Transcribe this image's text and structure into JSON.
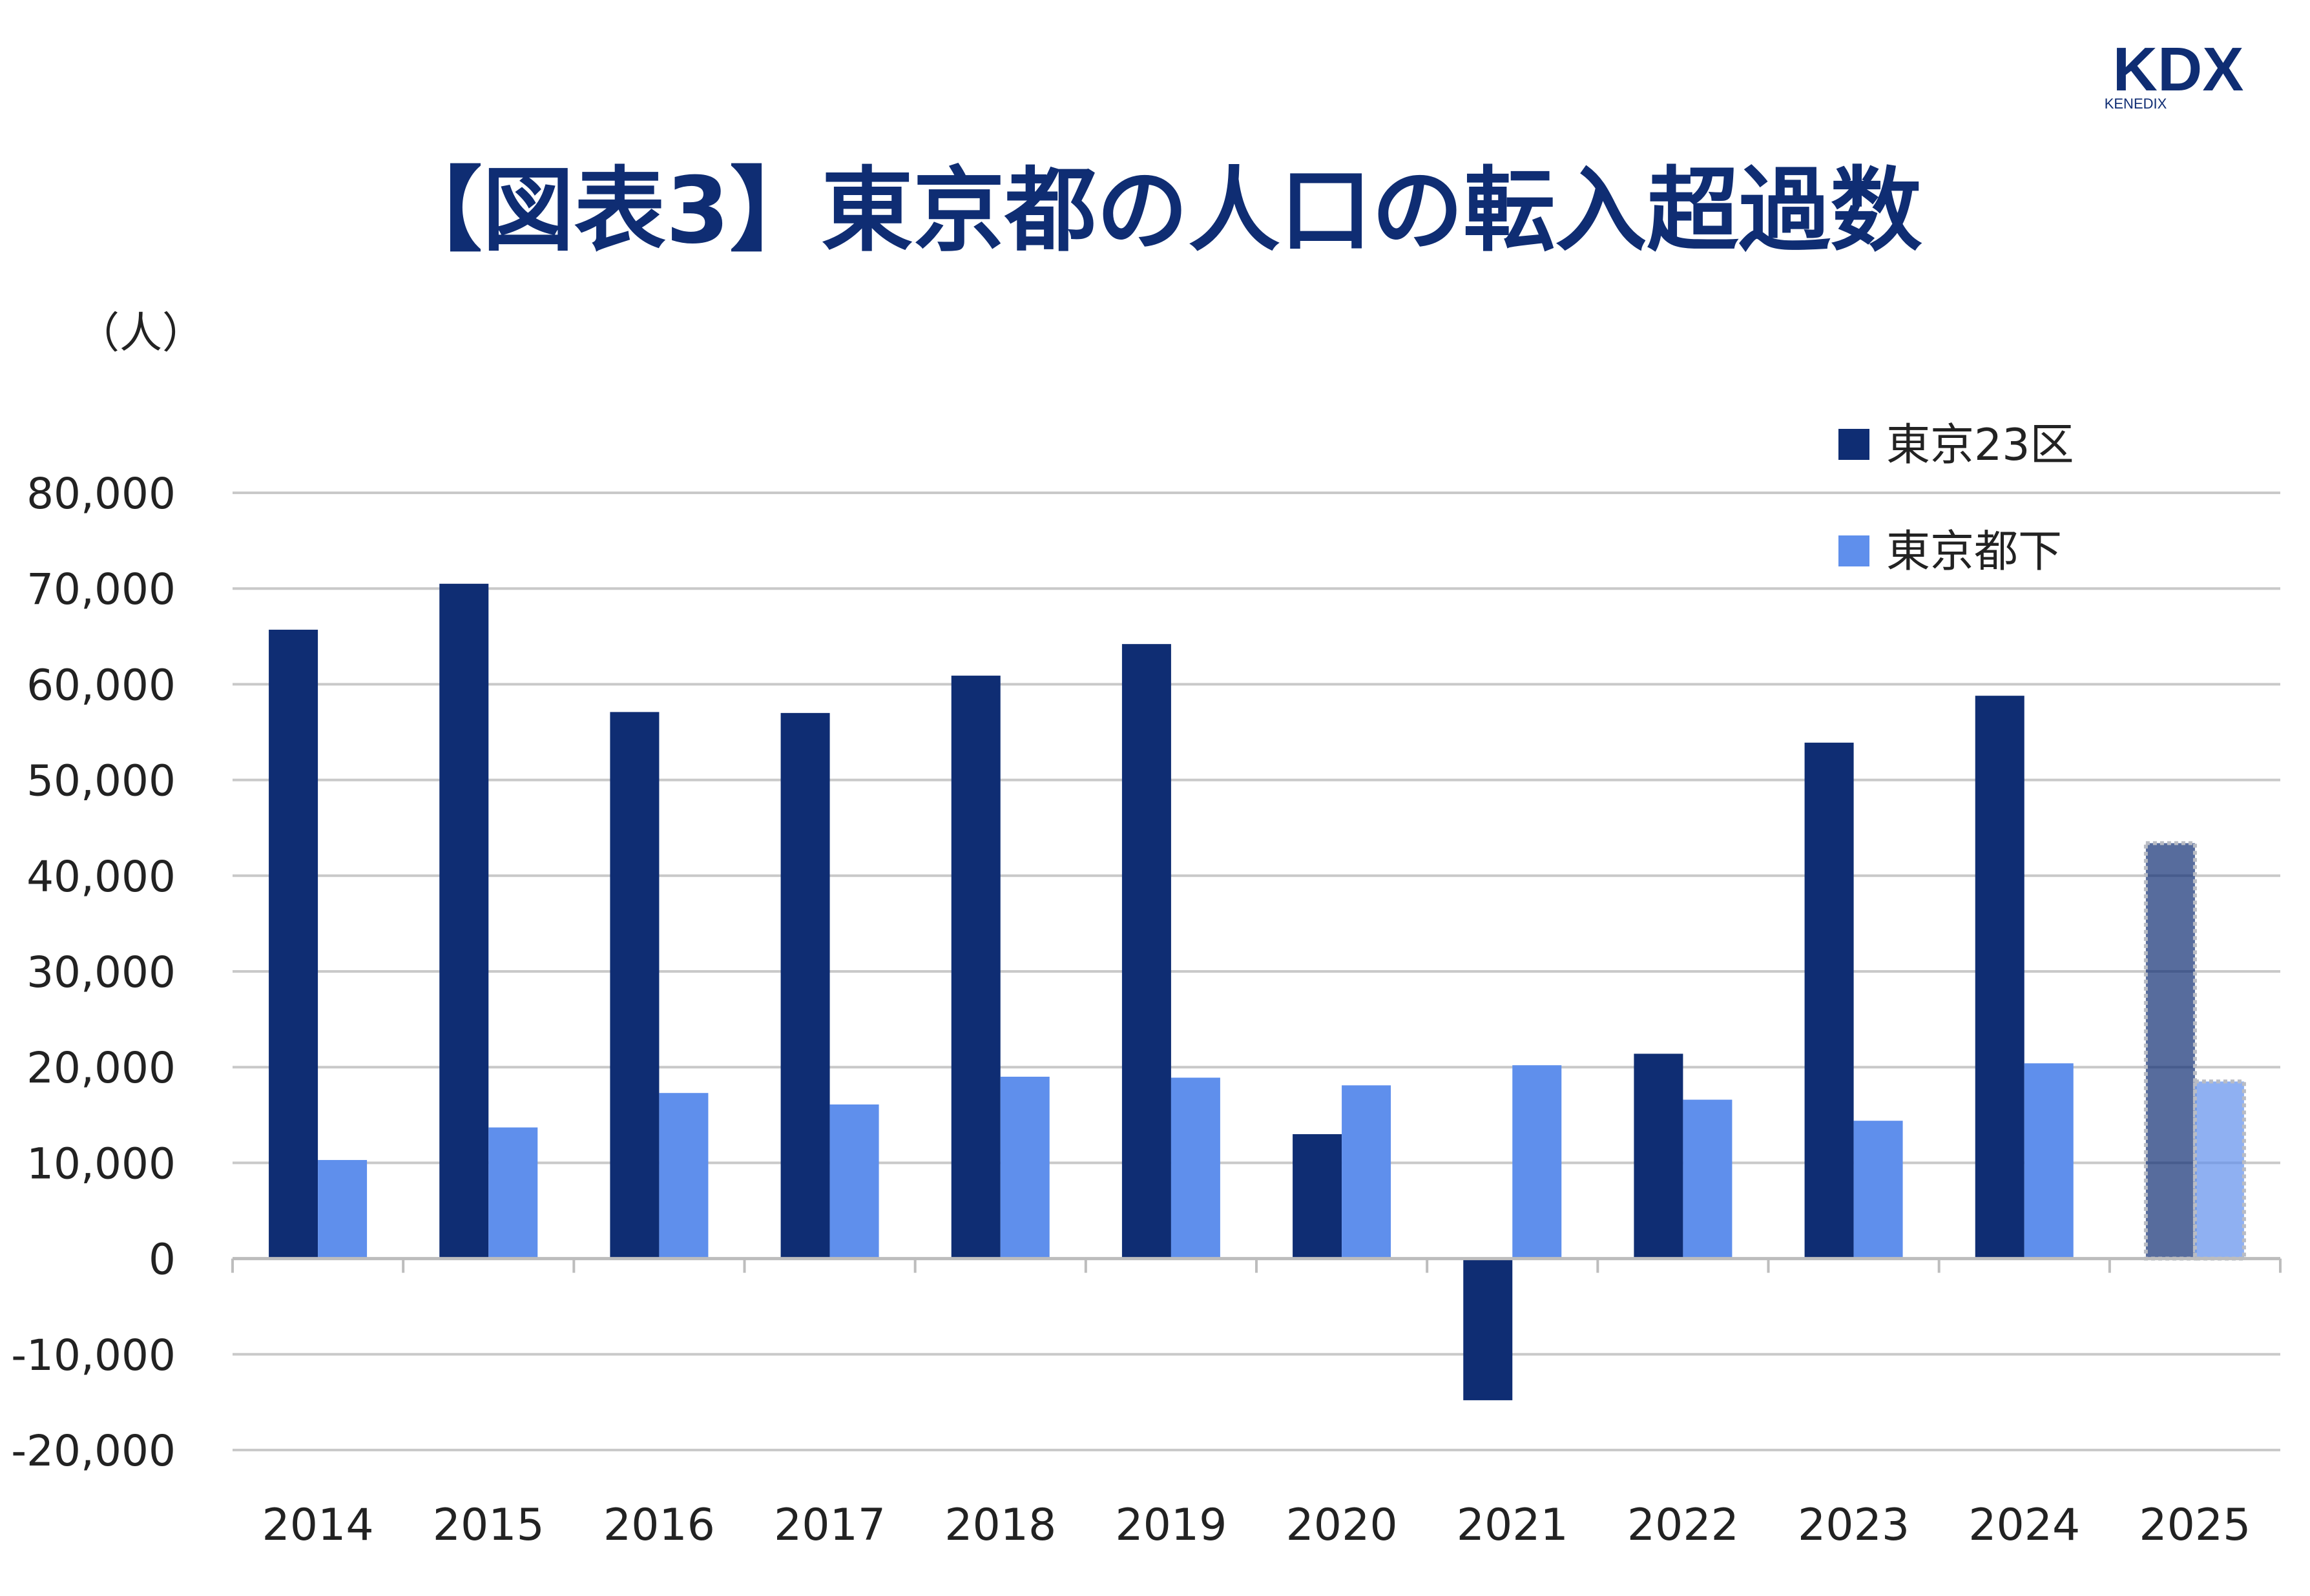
{
  "brand": {
    "logo_text": "KDX",
    "logo_subtext": "KENEDIX",
    "color": "#0f2d73"
  },
  "chart_data": {
    "type": "bar",
    "title": "【図表3】東京都の人口の転入超過数",
    "ylabel": "（人）",
    "xlabel": "",
    "categories": [
      "2014",
      "2015",
      "2016",
      "2017",
      "2018",
      "2019",
      "2020",
      "2021",
      "2022",
      "2023",
      "2024",
      "2025"
    ],
    "series": [
      {
        "name": "東京23区",
        "color": "#0f2d73",
        "values": [
          65700,
          70500,
          57100,
          57000,
          60900,
          64200,
          13000,
          -14800,
          21400,
          53900,
          58800,
          43400
        ]
      },
      {
        "name": "東京都下",
        "color": "#5f8fec",
        "values": [
          10300,
          13700,
          17300,
          16100,
          19000,
          18900,
          18100,
          20200,
          16600,
          14400,
          20400,
          18500
        ]
      }
    ],
    "highlight": {
      "category": "2025",
      "style": "lighter fill with dotted outline"
    },
    "y_ticks": [
      80000,
      70000,
      60000,
      50000,
      40000,
      30000,
      20000,
      10000,
      0,
      -10000,
      -20000
    ],
    "y_tick_labels": [
      "80,000",
      "70,000",
      "60,000",
      "50,000",
      "40,000",
      "30,000",
      "20,000",
      "10,000",
      "0",
      "-10,000",
      "-20,000"
    ],
    "ylim": [
      -20000,
      80000
    ],
    "grid": true,
    "legend_position": "top-right"
  }
}
